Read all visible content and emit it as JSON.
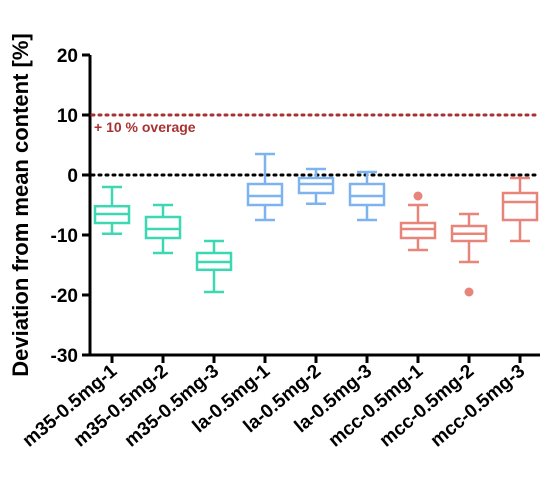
{
  "chart_data": {
    "type": "boxplot",
    "ylabel": "Deviation from mean content [%]",
    "xlabel": "",
    "ylim": [
      -30,
      20
    ],
    "yticks": [
      20,
      10,
      0,
      -10,
      -20,
      -30
    ],
    "categories": [
      "m35-0.5mg-1",
      "m35-0.5mg-2",
      "m35-0.5mg-3",
      "la-0.5mg-1",
      "la-0.5mg-2",
      "la-0.5mg-3",
      "mcc-0.5mg-1",
      "mcc-0.5mg-2",
      "mcc-0.5mg-3"
    ],
    "boxes": [
      {
        "min": -9.8,
        "q1": -8.0,
        "median": -6.5,
        "q3": -5.2,
        "max": -2.0,
        "outliers": [],
        "color": "#3cd8b4"
      },
      {
        "min": -13.0,
        "q1": -10.5,
        "median": -9.0,
        "q3": -7.0,
        "max": -5.0,
        "outliers": [],
        "color": "#3cd8b4"
      },
      {
        "min": -19.5,
        "q1": -15.8,
        "median": -14.5,
        "q3": -13.0,
        "max": -11.0,
        "outliers": [],
        "color": "#3cd8b4"
      },
      {
        "min": -7.5,
        "q1": -5.0,
        "median": -3.5,
        "q3": -1.5,
        "max": 3.5,
        "outliers": [],
        "color": "#7eb3f2"
      },
      {
        "min": -4.8,
        "q1": -3.0,
        "median": -1.5,
        "q3": -0.5,
        "max": 1.0,
        "outliers": [],
        "color": "#7eb3f2"
      },
      {
        "min": -7.5,
        "q1": -5.0,
        "median": -3.5,
        "q3": -1.5,
        "max": 0.5,
        "outliers": [],
        "color": "#7eb3f2"
      },
      {
        "min": -12.5,
        "q1": -10.5,
        "median": -9.0,
        "q3": -8.0,
        "max": -5.0,
        "outliers": [
          -3.5
        ],
        "color": "#e8857a"
      },
      {
        "min": -14.5,
        "q1": -11.0,
        "median": -9.8,
        "q3": -8.5,
        "max": -6.5,
        "outliers": [
          -19.5
        ],
        "color": "#e8857a"
      },
      {
        "min": -11.0,
        "q1": -7.5,
        "median": -4.5,
        "q3": -3.0,
        "max": -0.5,
        "outliers": [],
        "color": "#e8857a"
      }
    ],
    "reference_lines": [
      {
        "y": 10,
        "label": "+ 10 % overage",
        "color": "#a83232",
        "style": "dotted"
      },
      {
        "y": 0,
        "label": "",
        "color": "#000000",
        "style": "dotted"
      }
    ],
    "grid": false
  }
}
